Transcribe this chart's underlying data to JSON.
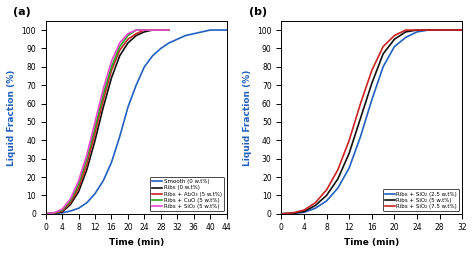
{
  "panel_a": {
    "label": "(a)",
    "xlabel": "Time (min)",
    "ylabel": "Liquid Fraction (%)",
    "xlim": [
      0,
      44
    ],
    "ylim": [
      0,
      105
    ],
    "xticks": [
      0,
      4,
      8,
      12,
      16,
      20,
      24,
      28,
      32,
      36,
      40,
      44
    ],
    "yticks": [
      0,
      10,
      20,
      30,
      40,
      50,
      60,
      70,
      80,
      90,
      100
    ],
    "series": [
      {
        "label": "Smooth (0 w.t%)",
        "color": "#2060c0",
        "lw": 1.2,
        "x": [
          0,
          2,
          4,
          6,
          8,
          10,
          12,
          14,
          16,
          18,
          20,
          22,
          24,
          26,
          28,
          30,
          32,
          34,
          36,
          38,
          40,
          42,
          44
        ],
        "y": [
          0,
          0.2,
          0.5,
          1.5,
          3,
          6,
          11,
          18,
          28,
          42,
          58,
          70,
          80,
          86,
          90,
          93,
          95,
          97,
          98,
          99,
          100,
          100,
          100
        ]
      },
      {
        "label": "Ribs (0 w.t%)",
        "color": "#111111",
        "lw": 1.2,
        "x": [
          0,
          2,
          4,
          6,
          8,
          10,
          12,
          14,
          16,
          18,
          20,
          22,
          24,
          26,
          28,
          30
        ],
        "y": [
          0,
          0.2,
          1,
          5,
          12,
          24,
          40,
          58,
          74,
          86,
          93,
          97,
          99,
          100,
          100,
          100
        ]
      },
      {
        "label": "Ribs + Al₂O₃ (5 w.t%)",
        "color": "#cc2222",
        "lw": 1.2,
        "x": [
          0,
          2,
          4,
          6,
          8,
          10,
          12,
          14,
          16,
          18,
          20,
          22,
          24,
          26,
          28,
          30
        ],
        "y": [
          0,
          0.3,
          1.5,
          6,
          14,
          27,
          44,
          62,
          78,
          89,
          95,
          98,
          100,
          100,
          100,
          100
        ]
      },
      {
        "label": "Ribs + CuO (5 w.t%)",
        "color": "#22aa22",
        "lw": 1.2,
        "x": [
          0,
          2,
          4,
          6,
          8,
          10,
          12,
          14,
          16,
          18,
          20,
          22,
          24,
          26,
          28,
          30
        ],
        "y": [
          0,
          0.4,
          2,
          7,
          16,
          30,
          47,
          65,
          80,
          91,
          97,
          100,
          100,
          100,
          100,
          100
        ]
      },
      {
        "label": "Ribs + SiO₂ (5 w.t%)",
        "color": "#ee44cc",
        "lw": 1.2,
        "x": [
          0,
          2,
          4,
          6,
          8,
          10,
          12,
          14,
          16,
          18,
          20,
          22,
          24,
          26,
          28,
          30
        ],
        "y": [
          0,
          0.5,
          2.5,
          8,
          18,
          32,
          50,
          68,
          83,
          93,
          98,
          100,
          100,
          100,
          100,
          100
        ]
      }
    ]
  },
  "panel_b": {
    "label": "(b)",
    "xlabel": "Time (min)",
    "ylabel": "Liquid Fraction (%)",
    "xlim": [
      0,
      32
    ],
    "ylim": [
      0,
      105
    ],
    "xticks": [
      0,
      4,
      8,
      12,
      16,
      20,
      24,
      28,
      32
    ],
    "yticks": [
      0,
      10,
      20,
      30,
      40,
      50,
      60,
      70,
      80,
      90,
      100
    ],
    "series": [
      {
        "label": "Ribs + SiO₂ (2.5 w.t%)",
        "color": "#2060c0",
        "lw": 1.2,
        "x": [
          0,
          2,
          4,
          6,
          8,
          10,
          12,
          14,
          16,
          18,
          20,
          22,
          24,
          26,
          28,
          30,
          32
        ],
        "y": [
          0,
          0.2,
          0.8,
          3,
          7,
          14,
          25,
          42,
          62,
          80,
          91,
          96,
          99,
          100,
          100,
          100,
          100
        ]
      },
      {
        "label": "Ribs + SiO₂ (5 w.t%)",
        "color": "#111111",
        "lw": 1.2,
        "x": [
          0,
          2,
          4,
          6,
          8,
          10,
          12,
          14,
          16,
          18,
          20,
          22,
          24,
          26,
          28,
          30,
          32
        ],
        "y": [
          0,
          0.3,
          1.2,
          4.5,
          10,
          19,
          33,
          52,
          71,
          87,
          95,
          99,
          100,
          100,
          100,
          100,
          100
        ]
      },
      {
        "label": "Ribs + SiO₂ (7.5 w.t%)",
        "color": "#cc2222",
        "lw": 1.2,
        "x": [
          0,
          2,
          4,
          6,
          8,
          10,
          12,
          14,
          16,
          18,
          20,
          22,
          24,
          26,
          28,
          30,
          32
        ],
        "y": [
          0,
          0.5,
          2,
          6,
          13,
          24,
          40,
          60,
          78,
          91,
          97,
          100,
          100,
          100,
          100,
          100,
          100
        ]
      }
    ]
  },
  "ylabel_color": "#2060c0",
  "background_color": "#ffffff",
  "figure_bg": "#ffffff"
}
